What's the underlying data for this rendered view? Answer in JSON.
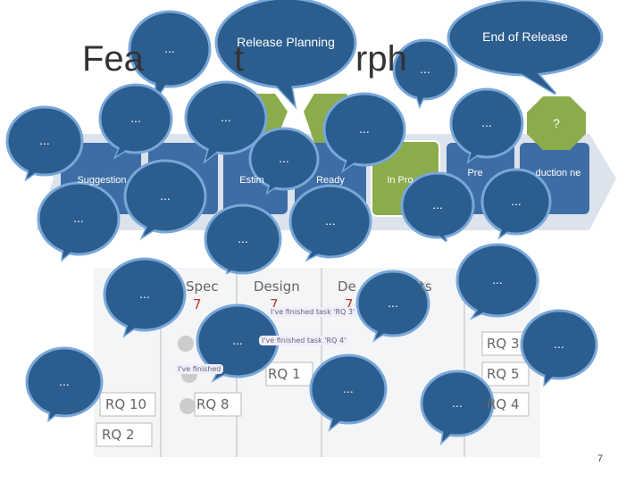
{
  "title_fragments": [
    "Fea",
    "t",
    "rph"
  ],
  "columns": [
    "Suggestion",
    "Estim",
    "Ready",
    "In Pro",
    "Pre",
    "duction ne"
  ],
  "top_marker": "?",
  "board": {
    "headers": [
      "Spec",
      "Design",
      "De",
      "ts"
    ],
    "counts": [
      "7",
      "7",
      "7"
    ],
    "notes": [
      "RQ 10",
      "RQ 2",
      "RQ 8",
      "RQ 1",
      "RQ 3",
      "RQ 5",
      "RQ 4"
    ],
    "messages": [
      "I've finished task 'RQ 3'",
      "I've finished task 'RQ 4'",
      "I've finished"
    ]
  },
  "bubbles": [
    "...",
    "Release Planning",
    "End of Release",
    "...",
    "...",
    "...",
    "...",
    "...",
    "...",
    "...",
    "...",
    "...",
    "...",
    "...",
    "...",
    "...",
    "...",
    "...",
    "...",
    "...",
    "...",
    "...",
    "...",
    "..."
  ],
  "page_number": "7"
}
